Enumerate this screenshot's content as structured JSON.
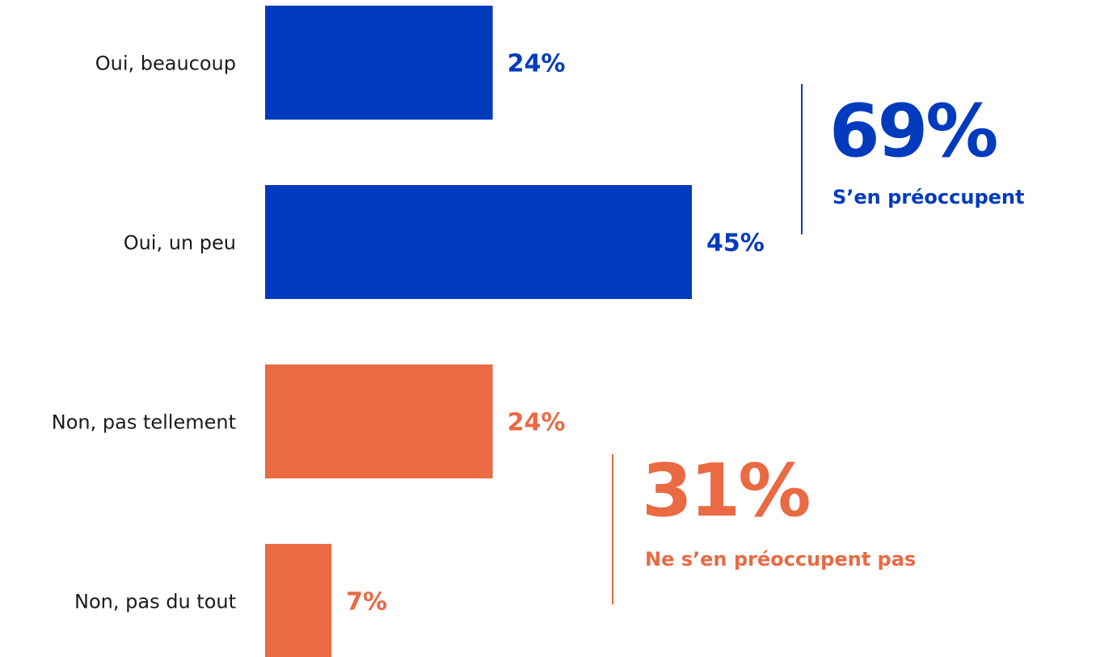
{
  "colors": {
    "yes": "#003bbd",
    "no": "#e96a43",
    "label_text": "#1a1a1a"
  },
  "chart_data": {
    "type": "bar",
    "orientation": "horizontal",
    "categories": [
      "Oui, beaucoup",
      "Oui, un peu",
      "Non, pas tellement",
      "Non, pas du tout"
    ],
    "values": [
      24,
      45,
      24,
      7
    ],
    "value_labels": [
      "24%",
      "45%",
      "24%",
      "7%"
    ],
    "bar_groups": [
      "yes",
      "yes",
      "no",
      "no"
    ],
    "xlim": [
      0,
      45
    ],
    "grid": false,
    "annotations": [
      {
        "group": "yes",
        "value": 69,
        "value_label": "69%",
        "text": "S’en préoccupent",
        "covers": [
          "Oui, beaucoup",
          "Oui, un peu"
        ]
      },
      {
        "group": "no",
        "value": 31,
        "value_label": "31%",
        "text": "Ne s’en préoccupent pas",
        "covers": [
          "Non, pas tellement",
          "Non, pas du tout"
        ]
      }
    ]
  }
}
